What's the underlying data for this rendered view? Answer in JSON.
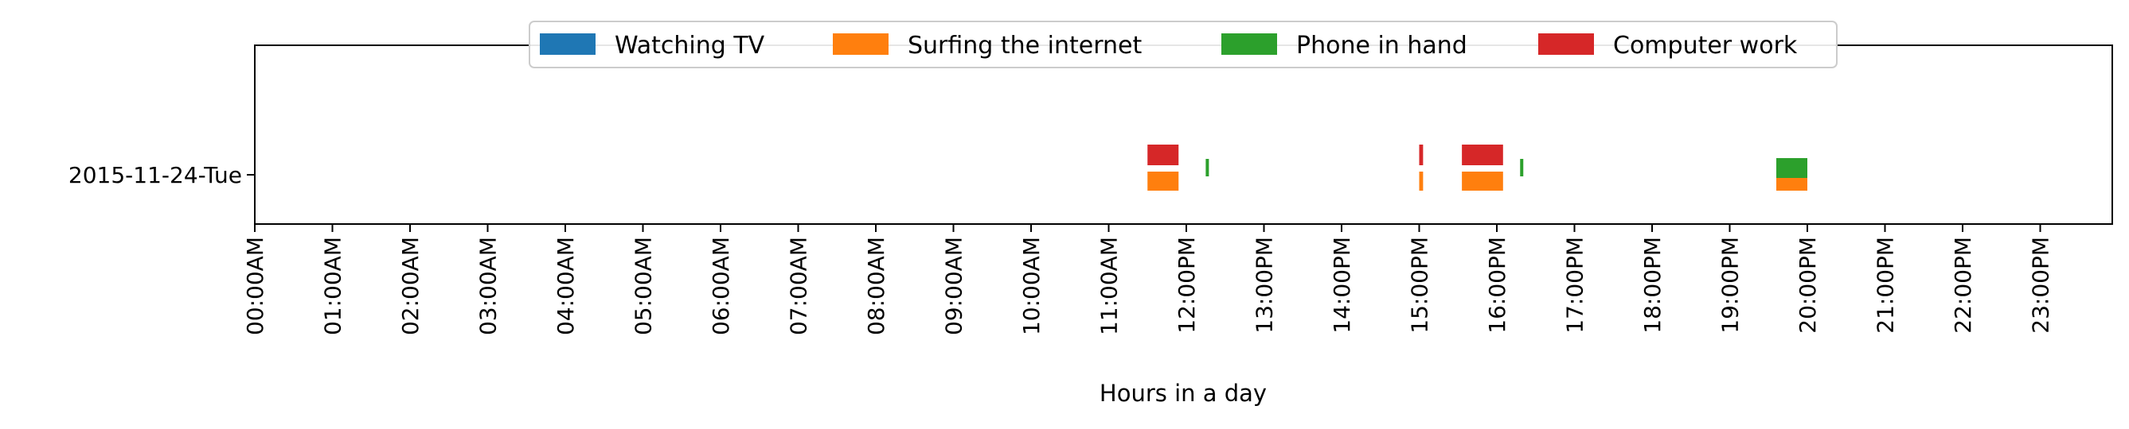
{
  "chart_data": {
    "type": "timeline",
    "xlabel": "Hours in a day",
    "ylabel": "",
    "xlim": [
      0,
      24
    ],
    "rows": [
      "2015-11-24-Tue"
    ],
    "x_ticks": [
      "00:00AM",
      "01:00AM",
      "02:00AM",
      "03:00AM",
      "04:00AM",
      "05:00AM",
      "06:00AM",
      "07:00AM",
      "08:00AM",
      "09:00AM",
      "10:00AM",
      "11:00AM",
      "12:00PM",
      "13:00PM",
      "14:00PM",
      "15:00PM",
      "16:00PM",
      "17:00PM",
      "18:00PM",
      "19:00PM",
      "20:00PM",
      "21:00PM",
      "22:00PM",
      "23:00PM"
    ],
    "legend_position": "top-center",
    "grid": false,
    "series": [
      {
        "name": "Watching TV",
        "color": "#1f77b4",
        "lane": "top",
        "intervals": []
      },
      {
        "name": "Surfing the internet",
        "color": "#ff7f0e",
        "lane": "bottom",
        "intervals": [
          [
            11.5,
            11.9
          ],
          [
            15.0,
            15.05
          ],
          [
            15.55,
            16.08
          ],
          [
            19.6,
            20.0
          ]
        ]
      },
      {
        "name": "Phone in hand",
        "color": "#2ca02c",
        "lane": "middle",
        "intervals": [
          [
            12.25,
            12.28
          ],
          [
            16.3,
            16.33
          ]
        ]
      },
      {
        "name": "Computer work",
        "color": "#d62728",
        "lane": "top",
        "intervals": [
          [
            11.5,
            11.9
          ],
          [
            15.0,
            15.05
          ],
          [
            15.55,
            16.08
          ]
        ]
      },
      {
        "name": "Phone in hand",
        "color": "#2ca02c",
        "lane": "top",
        "intervals": [
          [
            19.6,
            20.0
          ]
        ]
      }
    ]
  }
}
